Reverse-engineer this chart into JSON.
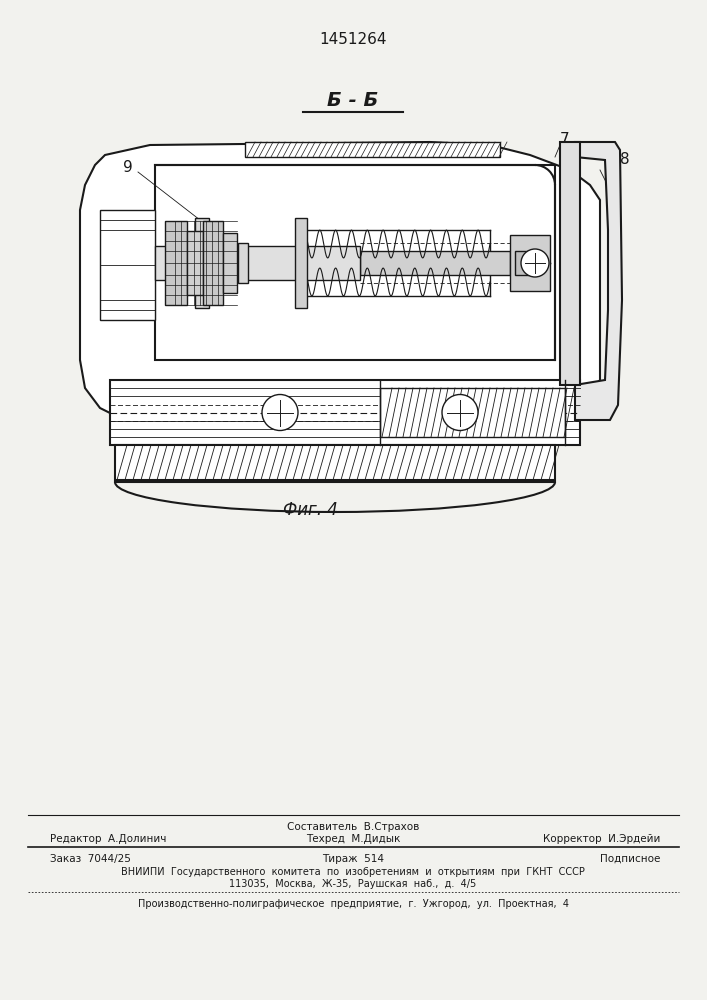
{
  "patent_number": "1451264",
  "section_label": "Б - Б",
  "fig_label": "Фиг. 4",
  "bg_color": "#f2f2ee",
  "line_color": "#1a1a1a",
  "footer_line1_left": "Редактор  А.Долинич",
  "footer_line1_center_top": "Составитель  В.Страхов",
  "footer_line1_center_bot": "Техред  М.Дидык",
  "footer_line1_right": "Корректор  И.Эрдейи",
  "footer_line2_left": "Заказ  7044/25",
  "footer_line2_center": "Тираж  514",
  "footer_line2_right": "Подписное",
  "footer_line3": "ВНИИПИ  Государственного  комитета  по  изобретениям  и  открытиям  при  ГКНТ  СССР",
  "footer_line4": "113035,  Москва,  Ж-35,  Раушская  наб.,  д.  4/5",
  "footer_line5": "Производственно-полиграфическое  предприятие,  г.  Ужгород,  ул.  Проектная,  4"
}
